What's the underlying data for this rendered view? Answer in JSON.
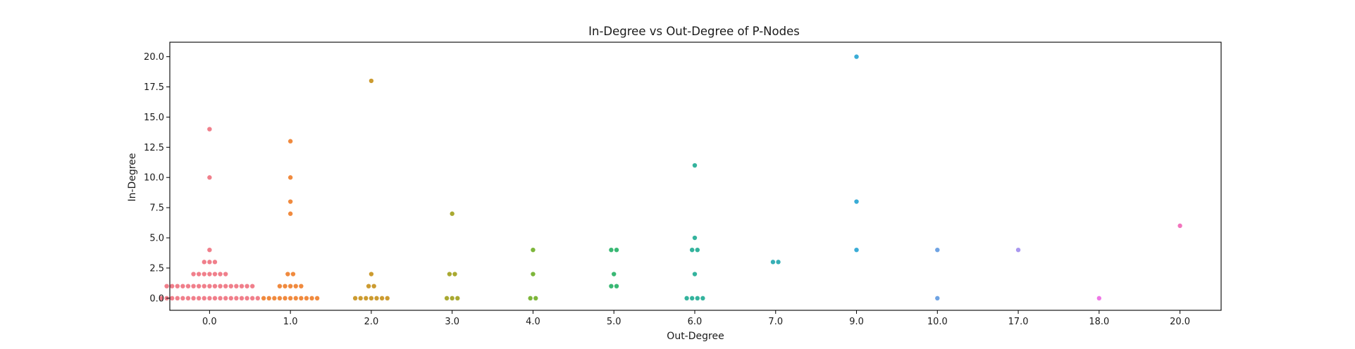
{
  "chart_data": {
    "type": "scatter",
    "subtype": "swarm",
    "title": "In-Degree vs Out-Degree of P-Nodes",
    "xlabel": "Out-Degree",
    "ylabel": "In-Degree",
    "ylim": [
      -1.0,
      21.2
    ],
    "yticks": [
      "0.0",
      "2.5",
      "5.0",
      "7.5",
      "10.0",
      "12.5",
      "15.0",
      "17.5",
      "20.0"
    ],
    "yticks_values": [
      0,
      2.5,
      5,
      7.5,
      10,
      12.5,
      15,
      17.5,
      20
    ],
    "grid": false,
    "legend": "none",
    "categories": [
      {
        "label": "0.0",
        "color": "#f07f8b",
        "points": [
          {
            "y": 14,
            "n": 1
          },
          {
            "y": 10,
            "n": 1
          },
          {
            "y": 4,
            "n": 1
          },
          {
            "y": 3,
            "n": 3
          },
          {
            "y": 2,
            "n": 7
          },
          {
            "y": 1,
            "n": 17
          },
          {
            "y": 0,
            "n": 19
          }
        ]
      },
      {
        "label": "1.0",
        "color": "#f08a3e",
        "points": [
          {
            "y": 13,
            "n": 1
          },
          {
            "y": 10,
            "n": 1
          },
          {
            "y": 8,
            "n": 1
          },
          {
            "y": 7,
            "n": 1
          },
          {
            "y": 2,
            "n": 2
          },
          {
            "y": 1,
            "n": 5
          },
          {
            "y": 0,
            "n": 11
          }
        ]
      },
      {
        "label": "2.0",
        "color": "#cc9b30",
        "points": [
          {
            "y": 18,
            "n": 1
          },
          {
            "y": 2,
            "n": 1
          },
          {
            "y": 1,
            "n": 2
          },
          {
            "y": 0,
            "n": 7
          }
        ]
      },
      {
        "label": "3.0",
        "color": "#a9a931",
        "points": [
          {
            "y": 7,
            "n": 1
          },
          {
            "y": 2,
            "n": 2
          },
          {
            "y": 0,
            "n": 3
          }
        ]
      },
      {
        "label": "4.0",
        "color": "#7db63a",
        "points": [
          {
            "y": 4,
            "n": 1
          },
          {
            "y": 2,
            "n": 1
          },
          {
            "y": 0,
            "n": 2
          }
        ]
      },
      {
        "label": "5.0",
        "color": "#39b874",
        "points": [
          {
            "y": 4,
            "n": 2
          },
          {
            "y": 2,
            "n": 1
          },
          {
            "y": 1,
            "n": 2
          }
        ]
      },
      {
        "label": "6.0",
        "color": "#34b39d",
        "points": [
          {
            "y": 11,
            "n": 1
          },
          {
            "y": 5,
            "n": 1
          },
          {
            "y": 4,
            "n": 2
          },
          {
            "y": 2,
            "n": 1
          },
          {
            "y": 0,
            "n": 4
          }
        ]
      },
      {
        "label": "7.0",
        "color": "#37afb6",
        "points": [
          {
            "y": 3,
            "n": 2
          }
        ]
      },
      {
        "label": "9.0",
        "color": "#3aacd6",
        "points": [
          {
            "y": 20,
            "n": 1
          },
          {
            "y": 8,
            "n": 1
          },
          {
            "y": 4,
            "n": 1
          }
        ]
      },
      {
        "label": "10.0",
        "color": "#6fa3e3",
        "points": [
          {
            "y": 4,
            "n": 1
          },
          {
            "y": 0,
            "n": 1
          }
        ]
      },
      {
        "label": "17.0",
        "color": "#a997ef",
        "points": [
          {
            "y": 4,
            "n": 1
          }
        ]
      },
      {
        "label": "18.0",
        "color": "#ee77e6",
        "points": [
          {
            "y": 0,
            "n": 1
          }
        ]
      },
      {
        "label": "20.0",
        "color": "#f274bd",
        "points": [
          {
            "y": 6,
            "n": 1
          }
        ]
      }
    ]
  }
}
